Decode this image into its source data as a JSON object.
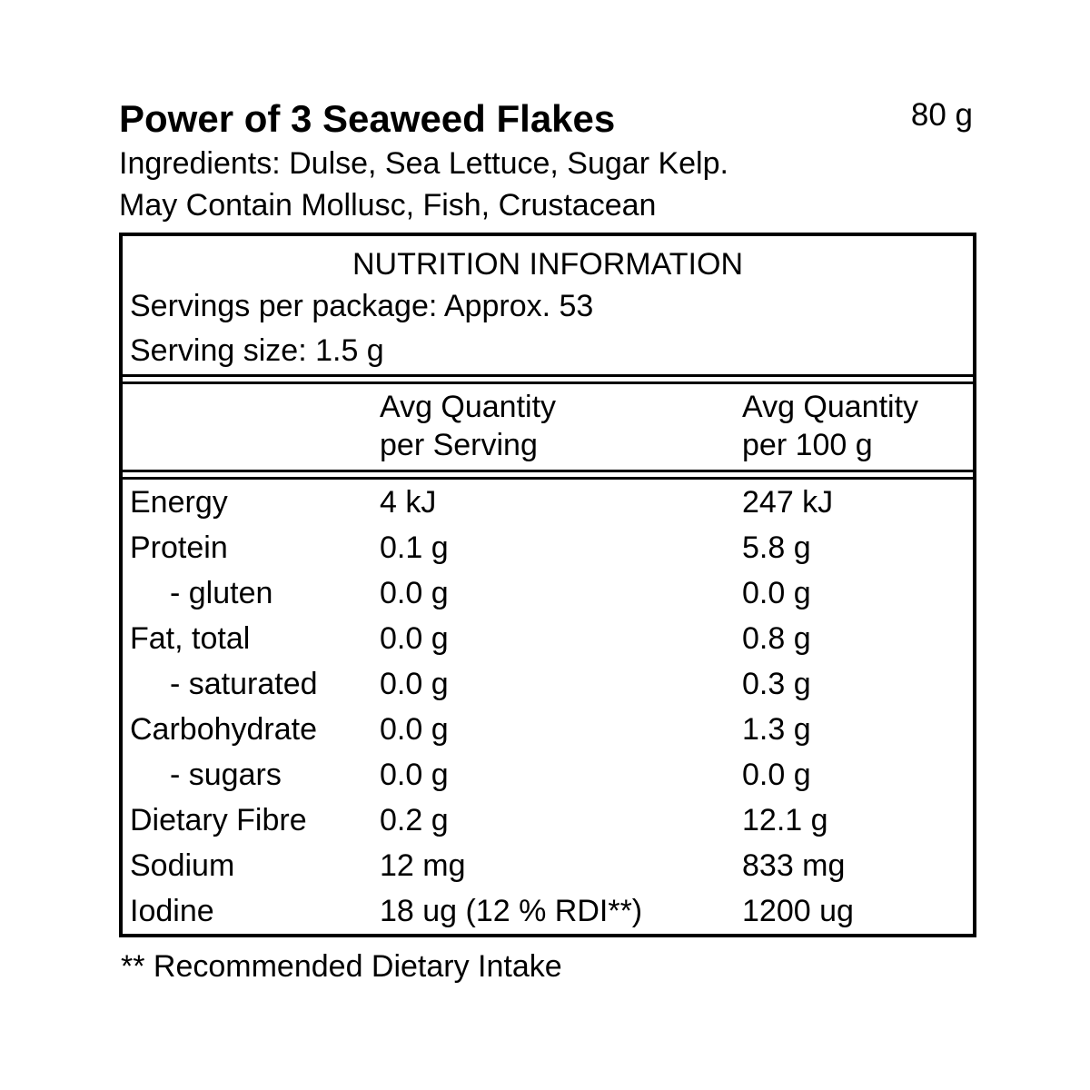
{
  "product": {
    "title": "Power of 3 Seaweed Flakes",
    "net_weight": "80 g",
    "ingredients": "Ingredients: Dulse, Sea Lettuce, Sugar Kelp.",
    "may_contain": "May Contain Mollusc, Fish, Crustacean"
  },
  "nutrition": {
    "panel_title": "NUTRITION INFORMATION",
    "servings_per_package": "Servings per package: Approx. 53",
    "serving_size": "Serving size: 1.5 g",
    "columns": {
      "per_serving_line1": "Avg Quantity",
      "per_serving_line2": "per Serving",
      "per_100g_line1": "Avg Quantity",
      "per_100g_line2": "per 100 g"
    },
    "rows": [
      {
        "name": "Energy",
        "per_serving": "4 kJ",
        "per_100g": "247 kJ",
        "indent": false
      },
      {
        "name": "Protein",
        "per_serving": "0.1 g",
        "per_100g": "5.8 g",
        "indent": false
      },
      {
        "name": "- gluten",
        "per_serving": "0.0 g",
        "per_100g": "0.0 g",
        "indent": true
      },
      {
        "name": "Fat, total",
        "per_serving": "0.0 g",
        "per_100g": "0.8 g",
        "indent": false
      },
      {
        "name": "- saturated",
        "per_serving": "0.0 g",
        "per_100g": "0.3 g",
        "indent": true
      },
      {
        "name": "Carbohydrate",
        "per_serving": "0.0 g",
        "per_100g": "1.3 g",
        "indent": false
      },
      {
        "name": "- sugars",
        "per_serving": "0.0 g",
        "per_100g": "0.0 g",
        "indent": true
      },
      {
        "name": "Dietary Fibre",
        "per_serving": "0.2 g",
        "per_100g": "12.1 g",
        "indent": false
      },
      {
        "name": "Sodium",
        "per_serving": "12 mg",
        "per_100g": "833 mg",
        "indent": false
      },
      {
        "name": "Iodine",
        "per_serving": "18 ug (12 % RDI**)",
        "per_100g": "1200 ug",
        "indent": false
      }
    ]
  },
  "footnote": "** Recommended Dietary Intake",
  "colors": {
    "text": "#000000",
    "border": "#000000",
    "background": "#ffffff"
  }
}
